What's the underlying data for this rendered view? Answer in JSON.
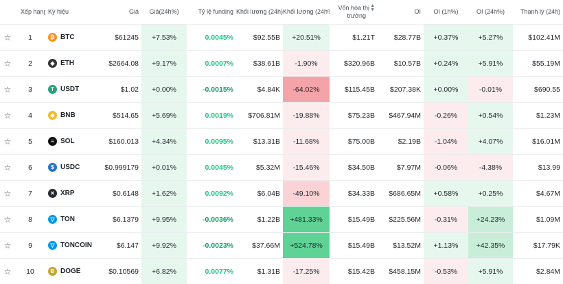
{
  "headers": {
    "rank": "Xếp hạng",
    "symbol": "Ký hiệu",
    "price": "Giá",
    "price_change": "Giá(24h%)",
    "funding": "Tỷ lệ funding",
    "volume": "Khối lượng (24h)",
    "volume_change": "Khối lượng (24h%)",
    "market_cap_1": "Vốn hóa thị",
    "market_cap_2": "trường",
    "oi": "OI",
    "oi_1h": "OI (1h%)",
    "oi_24h": "OI (24h%)",
    "liquidation": "Thanh lý (24h)"
  },
  "colors": {
    "up_light": "#e6f7ee",
    "up_mid": "#c8eed9",
    "up_strong": "#5fd395",
    "down_light": "#fdecee",
    "down_mid": "#fbd3d6",
    "down_strong": "#f4a4a9"
  },
  "rows": [
    {
      "rank": "1",
      "icon": "btc-icon",
      "icon_color": "#f7931a",
      "icon_glyph": "₿",
      "symbol": "BTC",
      "price": "$61245",
      "price_change": "+7.53%",
      "price_change_tone": "up_light",
      "funding": "0.0045%",
      "funding_tone": "pos",
      "volume": "$92.55B",
      "volume_change": "+20.51%",
      "volume_change_tone": "up_light",
      "market_cap": "$1.21T",
      "oi": "$28.77B",
      "oi_1h": "+0.37%",
      "oi_1h_tone": "up_light",
      "oi_24h": "+5.27%",
      "oi_24h_tone": "up_light",
      "liquidation": "$102.41M"
    },
    {
      "rank": "2",
      "icon": "eth-icon",
      "icon_color": "#343434",
      "icon_glyph": "◆",
      "symbol": "ETH",
      "price": "$2664.08",
      "price_change": "+9.17%",
      "price_change_tone": "up_light",
      "funding": "0.0007%",
      "funding_tone": "pos",
      "volume": "$38.61B",
      "volume_change": "-1.90%",
      "volume_change_tone": "down_light",
      "market_cap": "$320.96B",
      "oi": "$10.57B",
      "oi_1h": "+0.24%",
      "oi_1h_tone": "up_light",
      "oi_24h": "+5.91%",
      "oi_24h_tone": "up_light",
      "liquidation": "$55.19M"
    },
    {
      "rank": "3",
      "icon": "usdt-icon",
      "icon_color": "#26a17b",
      "icon_glyph": "T",
      "symbol": "USDT",
      "price": "$1.02",
      "price_change": "+0.00%",
      "price_change_tone": "up_light",
      "funding": "-0.0015%",
      "funding_tone": "neg",
      "volume": "$4.84K",
      "volume_change": "-64.02%",
      "volume_change_tone": "down_strong",
      "market_cap": "$115.45B",
      "oi": "$207.38K",
      "oi_1h": "+0.00%",
      "oi_1h_tone": "up_light",
      "oi_24h": "-0.01%",
      "oi_24h_tone": "down_light",
      "liquidation": "$690.55"
    },
    {
      "rank": "4",
      "icon": "bnb-icon",
      "icon_color": "#f3ba2f",
      "icon_glyph": "◈",
      "symbol": "BNB",
      "price": "$514.65",
      "price_change": "+5.69%",
      "price_change_tone": "up_light",
      "funding": "0.0019%",
      "funding_tone": "pos",
      "volume": "$706.81M",
      "volume_change": "-19.88%",
      "volume_change_tone": "down_light",
      "market_cap": "$75.23B",
      "oi": "$467.94M",
      "oi_1h": "-0.26%",
      "oi_1h_tone": "down_light",
      "oi_24h": "+0.54%",
      "oi_24h_tone": "up_light",
      "liquidation": "$1.23M"
    },
    {
      "rank": "5",
      "icon": "sol-icon",
      "icon_color": "#111111",
      "icon_glyph": "≡",
      "symbol": "SOL",
      "price": "$160.013",
      "price_change": "+4.34%",
      "price_change_tone": "up_light",
      "funding": "0.0095%",
      "funding_tone": "pos",
      "volume": "$13.31B",
      "volume_change": "-11.68%",
      "volume_change_tone": "down_light",
      "market_cap": "$75.00B",
      "oi": "$2.19B",
      "oi_1h": "-1.04%",
      "oi_1h_tone": "down_light",
      "oi_24h": "+4.07%",
      "oi_24h_tone": "up_light",
      "liquidation": "$16.01M"
    },
    {
      "rank": "6",
      "icon": "usdc-icon",
      "icon_color": "#2775ca",
      "icon_glyph": "$",
      "symbol": "USDC",
      "price": "$0.999179",
      "price_change": "+0.01%",
      "price_change_tone": "up_light",
      "funding": "0.0045%",
      "funding_tone": "pos",
      "volume": "$5.32M",
      "volume_change": "-15.46%",
      "volume_change_tone": "down_light",
      "market_cap": "$34.50B",
      "oi": "$7.97M",
      "oi_1h": "-0.06%",
      "oi_1h_tone": "down_light",
      "oi_24h": "-4.38%",
      "oi_24h_tone": "down_light",
      "liquidation": "$13.99"
    },
    {
      "rank": "7",
      "icon": "xrp-icon",
      "icon_color": "#23292f",
      "icon_glyph": "✕",
      "symbol": "XRP",
      "price": "$0.6148",
      "price_change": "+1.62%",
      "price_change_tone": "up_light",
      "funding": "0.0092%",
      "funding_tone": "pos",
      "volume": "$6.04B",
      "volume_change": "-49.10%",
      "volume_change_tone": "down_mid",
      "market_cap": "$34.33B",
      "oi": "$686.65M",
      "oi_1h": "+0.58%",
      "oi_1h_tone": "up_light",
      "oi_24h": "+0.25%",
      "oi_24h_tone": "up_light",
      "liquidation": "$4.67M"
    },
    {
      "rank": "8",
      "icon": "ton-icon",
      "icon_color": "#0098ea",
      "icon_glyph": "▽",
      "symbol": "TON",
      "price": "$6.1379",
      "price_change": "+9.95%",
      "price_change_tone": "up_light",
      "funding": "-0.0036%",
      "funding_tone": "neg",
      "volume": "$1.22B",
      "volume_change": "+481.33%",
      "volume_change_tone": "up_strong",
      "market_cap": "$15.49B",
      "oi": "$225.56M",
      "oi_1h": "-0.31%",
      "oi_1h_tone": "down_light",
      "oi_24h": "+24.23%",
      "oi_24h_tone": "up_mid",
      "liquidation": "$1.09M"
    },
    {
      "rank": "9",
      "icon": "toncoin-icon",
      "icon_color": "#0098ea",
      "icon_glyph": "▽",
      "symbol": "TONCOIN",
      "price": "$6.147",
      "price_change": "+9.92%",
      "price_change_tone": "up_light",
      "funding": "-0.0023%",
      "funding_tone": "neg",
      "volume": "$37.66M",
      "volume_change": "+524.78%",
      "volume_change_tone": "up_strong",
      "market_cap": "$15.49B",
      "oi": "$13.52M",
      "oi_1h": "+1.13%",
      "oi_1h_tone": "up_light",
      "oi_24h": "+42.35%",
      "oi_24h_tone": "up_mid",
      "liquidation": "$17.79K"
    },
    {
      "rank": "10",
      "icon": "doge-icon",
      "icon_color": "#c2a633",
      "icon_glyph": "Ð",
      "symbol": "DOGE",
      "price": "$0.10569",
      "price_change": "+6.82%",
      "price_change_tone": "up_light",
      "funding": "0.0077%",
      "funding_tone": "pos",
      "volume": "$1.31B",
      "volume_change": "-17.25%",
      "volume_change_tone": "down_light",
      "market_cap": "$15.42B",
      "oi": "$458.15M",
      "oi_1h": "-0.53%",
      "oi_1h_tone": "down_light",
      "oi_24h": "+5.91%",
      "oi_24h_tone": "up_light",
      "liquidation": "$2.84M"
    }
  ]
}
